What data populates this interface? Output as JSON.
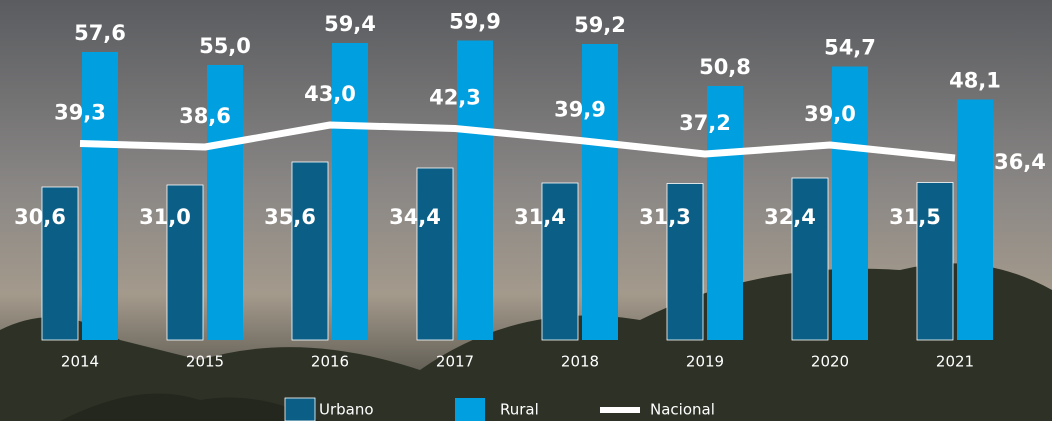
{
  "chart_data": {
    "type": "bar-line",
    "categories": [
      "2014",
      "2015",
      "2016",
      "2017",
      "2018",
      "2019",
      "2020",
      "2021"
    ],
    "series": [
      {
        "name": "Urbano",
        "type": "bar",
        "color": "#0b5f86",
        "values": [
          30.6,
          31.0,
          35.6,
          34.4,
          31.4,
          31.3,
          32.4,
          31.5
        ],
        "value_labels": [
          "30,6",
          "31,0",
          "35,6",
          "34,4",
          "31,4",
          "31,3",
          "32,4",
          "31,5"
        ]
      },
      {
        "name": "Rural",
        "type": "bar",
        "color": "#009fe0",
        "values": [
          57.6,
          55.0,
          59.4,
          59.9,
          59.2,
          50.8,
          54.7,
          48.1
        ],
        "value_labels": [
          "57,6",
          "55,0",
          "59,4",
          "59,9",
          "59,2",
          "50,8",
          "54,7",
          "48,1"
        ]
      },
      {
        "name": "Nacional",
        "type": "line",
        "color": "#ffffff",
        "values": [
          39.3,
          38.6,
          43.0,
          42.3,
          39.9,
          37.2,
          39.0,
          36.4
        ],
        "value_labels": [
          "39,3",
          "38,6",
          "43,0",
          "42,3",
          "39,9",
          "37,2",
          "39,0",
          "36,4"
        ]
      }
    ]
  }
}
